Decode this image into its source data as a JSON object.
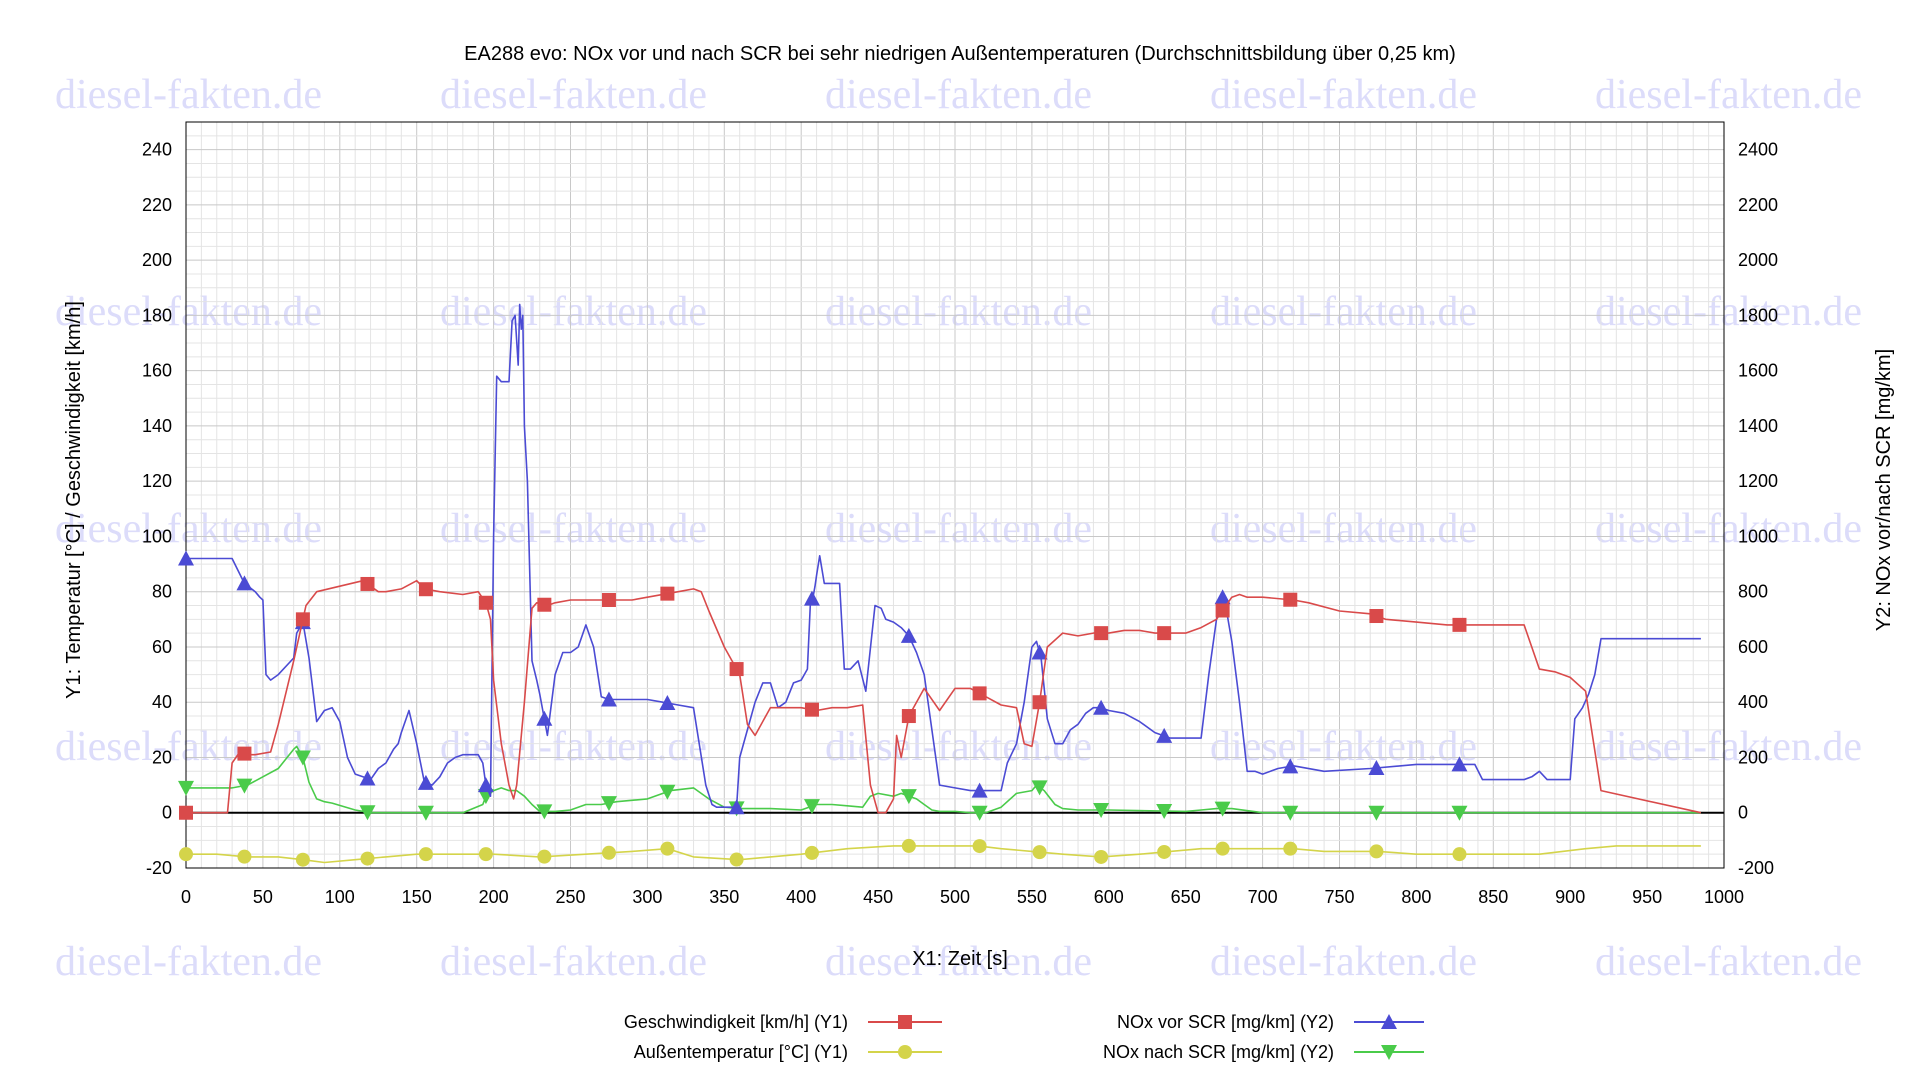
{
  "watermark": "diesel-fakten.de",
  "colors": {
    "speed": "#d94a4a",
    "temp": "#d4d44a",
    "nox_before": "#4b4bd4",
    "nox_after": "#4acb4a",
    "grid_major": "#c8c8c8",
    "grid_minor": "#e4e4e4"
  },
  "chart_data": {
    "type": "line",
    "title": "EA288 evo: NOx vor und nach SCR bei sehr niedrigen Außentemperaturen (Durchschnittsbildung über 0,25 km)",
    "xlabel": "X1: Zeit [s]",
    "y1label": "Y1: Temperatur [°C] / Geschwindigkeit [km/h]",
    "y2label": "Y2: NOx vor/nach SCR [mg/km]",
    "xlim": [
      0,
      1000
    ],
    "y1lim": [
      -20,
      250
    ],
    "y2lim": [
      -200,
      2500
    ],
    "xticks": [
      "0",
      "50",
      "100",
      "150",
      "200",
      "250",
      "300",
      "350",
      "400",
      "450",
      "500",
      "550",
      "600",
      "650",
      "700",
      "750",
      "800",
      "850",
      "900",
      "950",
      "1000"
    ],
    "y1ticks": [
      "-20",
      "0",
      "20",
      "40",
      "60",
      "80",
      "100",
      "120",
      "140",
      "160",
      "180",
      "200",
      "220",
      "240"
    ],
    "y2ticks": [
      "-200",
      "0",
      "200",
      "400",
      "600",
      "800",
      "1000",
      "1200",
      "1400",
      "1600",
      "1800",
      "2000",
      "2200",
      "2400"
    ],
    "grid": true,
    "legend_position": "bottom",
    "series": [
      {
        "name": "Geschwindigkeit [km/h] (Y1)",
        "axis": "y1",
        "color": "#d94a4a",
        "marker": "square",
        "x": [
          0,
          27,
          30,
          35,
          40,
          45,
          55,
          60,
          70,
          78,
          85,
          100,
          115,
          120,
          125,
          130,
          140,
          150,
          155,
          165,
          180,
          190,
          195,
          198,
          200,
          205,
          210,
          213,
          215,
          220,
          225,
          228,
          235,
          240,
          250,
          260,
          270,
          280,
          290,
          300,
          320,
          330,
          335,
          340,
          350,
          360,
          365,
          370,
          380,
          390,
          400,
          410,
          420,
          430,
          440,
          445,
          450,
          455,
          460,
          462,
          465,
          470,
          480,
          490,
          500,
          510,
          520,
          530,
          540,
          545,
          550,
          555,
          560,
          570,
          580,
          590,
          600,
          610,
          620,
          630,
          640,
          650,
          660,
          670,
          680,
          685,
          690,
          700,
          720,
          730,
          750,
          770,
          780,
          800,
          820,
          840,
          860,
          870,
          880,
          890,
          900,
          910,
          920,
          985
        ],
        "y": [
          0,
          0,
          18,
          22,
          21,
          21,
          22,
          32,
          55,
          75,
          80,
          82,
          84,
          82,
          80,
          80,
          81,
          84,
          81,
          80,
          79,
          80,
          76,
          70,
          48,
          25,
          10,
          5,
          10,
          40,
          74,
          76,
          75,
          76,
          77,
          77,
          77,
          77,
          77,
          78,
          80,
          81,
          80,
          73,
          60,
          50,
          32,
          28,
          38,
          38,
          38,
          37,
          38,
          38,
          39,
          10,
          0,
          0,
          5,
          28,
          20,
          35,
          45,
          37,
          45,
          45,
          42,
          39,
          38,
          25,
          24,
          40,
          60,
          65,
          64,
          65,
          65,
          66,
          66,
          65,
          65,
          65,
          67,
          70,
          78,
          79,
          78,
          78,
          77,
          76,
          73,
          72,
          70,
          69,
          68,
          68,
          68,
          68,
          52,
          51,
          49,
          44,
          8,
          0
        ]
      },
      {
        "name": "Außentemperatur [°C] (Y1)",
        "axis": "y1",
        "color": "#d4d44a",
        "marker": "circle",
        "x": [
          0,
          20,
          40,
          60,
          76,
          90,
          110,
          130,
          150,
          175,
          200,
          230,
          260,
          290,
          313,
          330,
          360,
          380,
          400,
          430,
          460,
          480,
          500,
          515,
          530,
          550,
          570,
          595,
          620,
          640,
          660,
          675,
          700,
          720,
          740,
          775,
          800,
          828,
          860,
          880,
          895,
          910,
          930,
          960,
          985
        ],
        "y": [
          -15,
          -15,
          -16,
          -16,
          -17,
          -18,
          -17,
          -16,
          -15,
          -15,
          -15,
          -16,
          -15,
          -14,
          -13,
          -16,
          -17,
          -16,
          -15,
          -13,
          -12,
          -12,
          -12,
          -12,
          -13,
          -14,
          -15,
          -16,
          -15,
          -14,
          -13,
          -13,
          -13,
          -13,
          -14,
          -14,
          -15,
          -15,
          -15,
          -15,
          -14,
          -13,
          -12,
          -12,
          -12
        ]
      },
      {
        "name": "NOx vor SCR [mg/km] (Y2)",
        "axis": "y2",
        "color": "#4b4bd4",
        "marker": "triangle-up",
        "x": [
          0,
          25,
          30,
          38,
          45,
          48,
          50,
          52,
          55,
          60,
          70,
          72,
          76,
          80,
          85,
          90,
          95,
          100,
          105,
          110,
          115,
          120,
          125,
          130,
          135,
          138,
          140,
          145,
          150,
          155,
          160,
          165,
          170,
          175,
          180,
          185,
          190,
          193,
          195,
          198,
          200,
          202,
          205,
          210,
          212,
          214,
          216,
          217,
          218,
          219,
          220,
          222,
          225,
          228,
          230,
          235,
          240,
          245,
          250,
          255,
          260,
          265,
          270,
          275,
          280,
          285,
          290,
          300,
          310,
          320,
          330,
          338,
          342,
          345,
          350,
          355,
          358,
          360,
          365,
          370,
          375,
          380,
          385,
          390,
          395,
          400,
          404,
          406,
          408,
          409,
          410,
          412,
          415,
          425,
          428,
          432,
          437,
          442,
          448,
          452,
          455,
          460,
          465,
          470,
          475,
          480,
          490,
          500,
          510,
          515,
          520,
          530,
          534,
          540,
          545,
          550,
          553,
          556,
          560,
          565,
          570,
          575,
          580,
          585,
          590,
          595,
          600,
          610,
          620,
          630,
          640,
          650,
          660,
          665,
          670,
          673,
          675,
          680,
          685,
          690,
          695,
          700,
          710,
          720,
          740,
          770,
          790,
          800,
          820,
          828,
          838,
          843,
          860,
          865,
          870,
          875,
          880,
          885,
          890,
          900,
          903,
          908,
          912,
          916,
          920,
          985
        ],
        "y": [
          920,
          920,
          920,
          830,
          800,
          780,
          770,
          500,
          480,
          500,
          560,
          650,
          690,
          560,
          330,
          370,
          380,
          330,
          200,
          140,
          130,
          120,
          160,
          180,
          230,
          250,
          290,
          370,
          250,
          110,
          100,
          130,
          180,
          200,
          210,
          210,
          210,
          180,
          100,
          60,
          1000,
          1580,
          1560,
          1560,
          1780,
          1800,
          1620,
          1840,
          1750,
          1800,
          1400,
          1200,
          550,
          480,
          430,
          280,
          500,
          580,
          580,
          600,
          680,
          600,
          420,
          410,
          410,
          410,
          410,
          410,
          400,
          390,
          380,
          100,
          30,
          20,
          20,
          20,
          20,
          200,
          300,
          400,
          470,
          470,
          380,
          400,
          470,
          480,
          520,
          760,
          790,
          820,
          860,
          930,
          830,
          830,
          520,
          520,
          550,
          440,
          750,
          740,
          700,
          690,
          670,
          640,
          580,
          500,
          100,
          90,
          80,
          80,
          80,
          80,
          180,
          250,
          400,
          600,
          620,
          560,
          340,
          250,
          250,
          300,
          320,
          360,
          380,
          380,
          370,
          360,
          330,
          290,
          270,
          270,
          270,
          500,
          700,
          780,
          780,
          620,
          400,
          150,
          150,
          140,
          160,
          170,
          150,
          160,
          170,
          175,
          175,
          175,
          175,
          120,
          120,
          120,
          120,
          130,
          150,
          120,
          120,
          120,
          340,
          380,
          430,
          500,
          630,
          630
        ]
      },
      {
        "name": "NOx nach SCR [mg/km] (Y2)",
        "axis": "y2",
        "color": "#4acb4a",
        "marker": "triangle-down",
        "x": [
          0,
          30,
          40,
          50,
          60,
          70,
          72,
          76,
          80,
          85,
          90,
          95,
          110,
          120,
          140,
          160,
          180,
          193,
          195,
          200,
          205,
          210,
          215,
          220,
          225,
          230,
          240,
          250,
          260,
          270,
          280,
          300,
          315,
          330,
          340,
          350,
          360,
          380,
          400,
          410,
          420,
          430,
          440,
          445,
          450,
          460,
          465,
          470,
          475,
          480,
          485,
          490,
          500,
          510,
          520,
          530,
          540,
          550,
          553,
          558,
          565,
          570,
          580,
          600,
          650,
          660,
          670,
          675,
          680,
          700,
          750,
          850,
          985
        ],
        "y": [
          90,
          90,
          100,
          130,
          160,
          230,
          240,
          200,
          110,
          50,
          40,
          35,
          10,
          0,
          0,
          0,
          0,
          30,
          60,
          80,
          90,
          80,
          80,
          60,
          30,
          5,
          5,
          10,
          30,
          30,
          40,
          50,
          80,
          90,
          50,
          20,
          15,
          15,
          10,
          30,
          30,
          25,
          20,
          60,
          70,
          60,
          70,
          60,
          50,
          30,
          10,
          5,
          5,
          0,
          0,
          20,
          70,
          80,
          100,
          80,
          30,
          15,
          10,
          10,
          5,
          10,
          15,
          15,
          15,
          0,
          0,
          0,
          0
        ]
      }
    ]
  }
}
